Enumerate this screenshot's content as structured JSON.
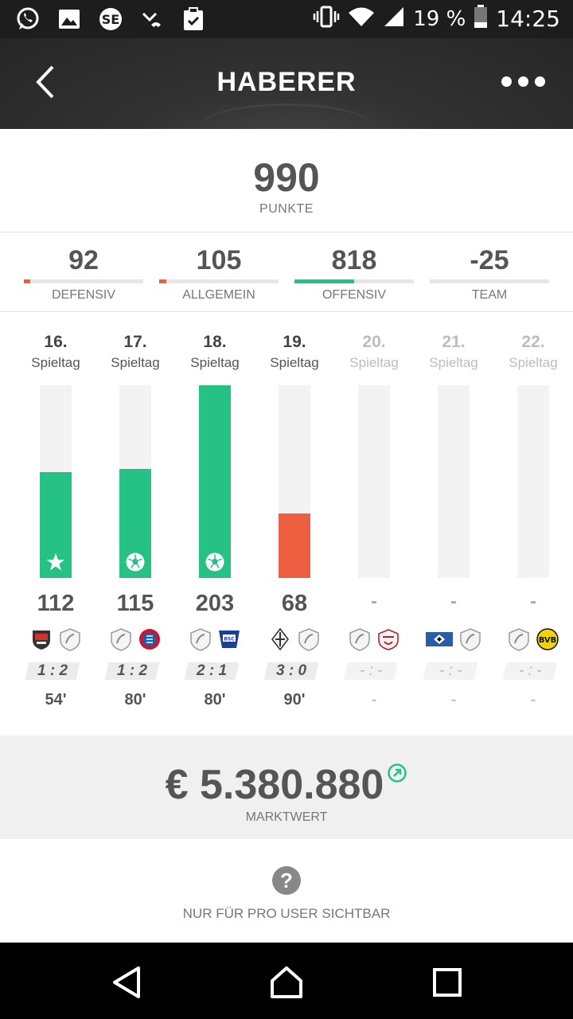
{
  "status_bar": {
    "battery": "19 %",
    "time": "14:25",
    "icons": [
      "whatsapp-icon",
      "gallery-icon",
      "app-se-icon",
      "missed-call-icon",
      "clipboard-check-icon",
      "vibrate-icon",
      "wifi-icon",
      "signal-icon",
      "battery-icon"
    ]
  },
  "header": {
    "title": "HABERER"
  },
  "points": {
    "value": "990",
    "label": "PUNKTE"
  },
  "categories": [
    {
      "value": "92",
      "label": "DEFENSIV",
      "fill": 0.05,
      "color": "#e8613f"
    },
    {
      "value": "105",
      "label": "ALLGEMEIN",
      "fill": 0.06,
      "color": "#e8613f"
    },
    {
      "value": "818",
      "label": "OFFENSIV",
      "fill": 0.5,
      "color": "#26c184"
    },
    {
      "value": "-25",
      "label": "TEAM",
      "fill": 0,
      "color": "#e8613f"
    }
  ],
  "rounds": [
    {
      "num": "16.",
      "word": "Spieltag",
      "points": "112",
      "score": "1 : 2",
      "minutes": "54'",
      "fill": 0.55,
      "color": "#26c184",
      "icon": "star-icon",
      "home": "ingolstadt-logo",
      "away": "freiburg-logo",
      "future": false
    },
    {
      "num": "17.",
      "word": "Spieltag",
      "points": "115",
      "score": "1 : 2",
      "minutes": "80'",
      "fill": 0.565,
      "color": "#26c184",
      "icon": "soccer-ball-icon",
      "home": "freiburg-logo",
      "away": "bayern-logo",
      "future": false
    },
    {
      "num": "18.",
      "word": "Spieltag",
      "points": "203",
      "score": "2 : 1",
      "minutes": "80'",
      "fill": 1.0,
      "color": "#26c184",
      "icon": "soccer-ball-icon",
      "home": "freiburg-logo",
      "away": "hertha-logo",
      "future": false
    },
    {
      "num": "19.",
      "word": "Spieltag",
      "points": "68",
      "score": "3 : 0",
      "minutes": "90'",
      "fill": 0.335,
      "color": "#ec6041",
      "icon": "",
      "home": "gladbach-logo",
      "away": "freiburg-logo",
      "future": false
    },
    {
      "num": "20.",
      "word": "Spieltag",
      "points": "-",
      "score": "- : -",
      "minutes": "-",
      "fill": 0,
      "color": "#26c184",
      "icon": "",
      "home": "freiburg-logo",
      "away": "koeln-logo",
      "future": true
    },
    {
      "num": "21.",
      "word": "Spieltag",
      "points": "-",
      "score": "- : -",
      "minutes": "-",
      "fill": 0,
      "color": "#26c184",
      "icon": "",
      "home": "hamburg-logo",
      "away": "freiburg-logo",
      "future": true
    },
    {
      "num": "22.",
      "word": "Spieltag",
      "points": "-",
      "score": "- : -",
      "minutes": "-",
      "fill": 0,
      "color": "#26c184",
      "icon": "",
      "home": "freiburg-logo",
      "away": "dortmund-logo",
      "future": true
    }
  ],
  "market": {
    "value": "€ 5.380.880",
    "label": "MARKTWERT",
    "trend_icon": "trend-up-icon"
  },
  "pro": {
    "label": "NUR FÜR PRO USER SICHTBAR"
  },
  "colors": {
    "green": "#26c184",
    "red": "#e8613f",
    "header": "#2b2b2b"
  }
}
